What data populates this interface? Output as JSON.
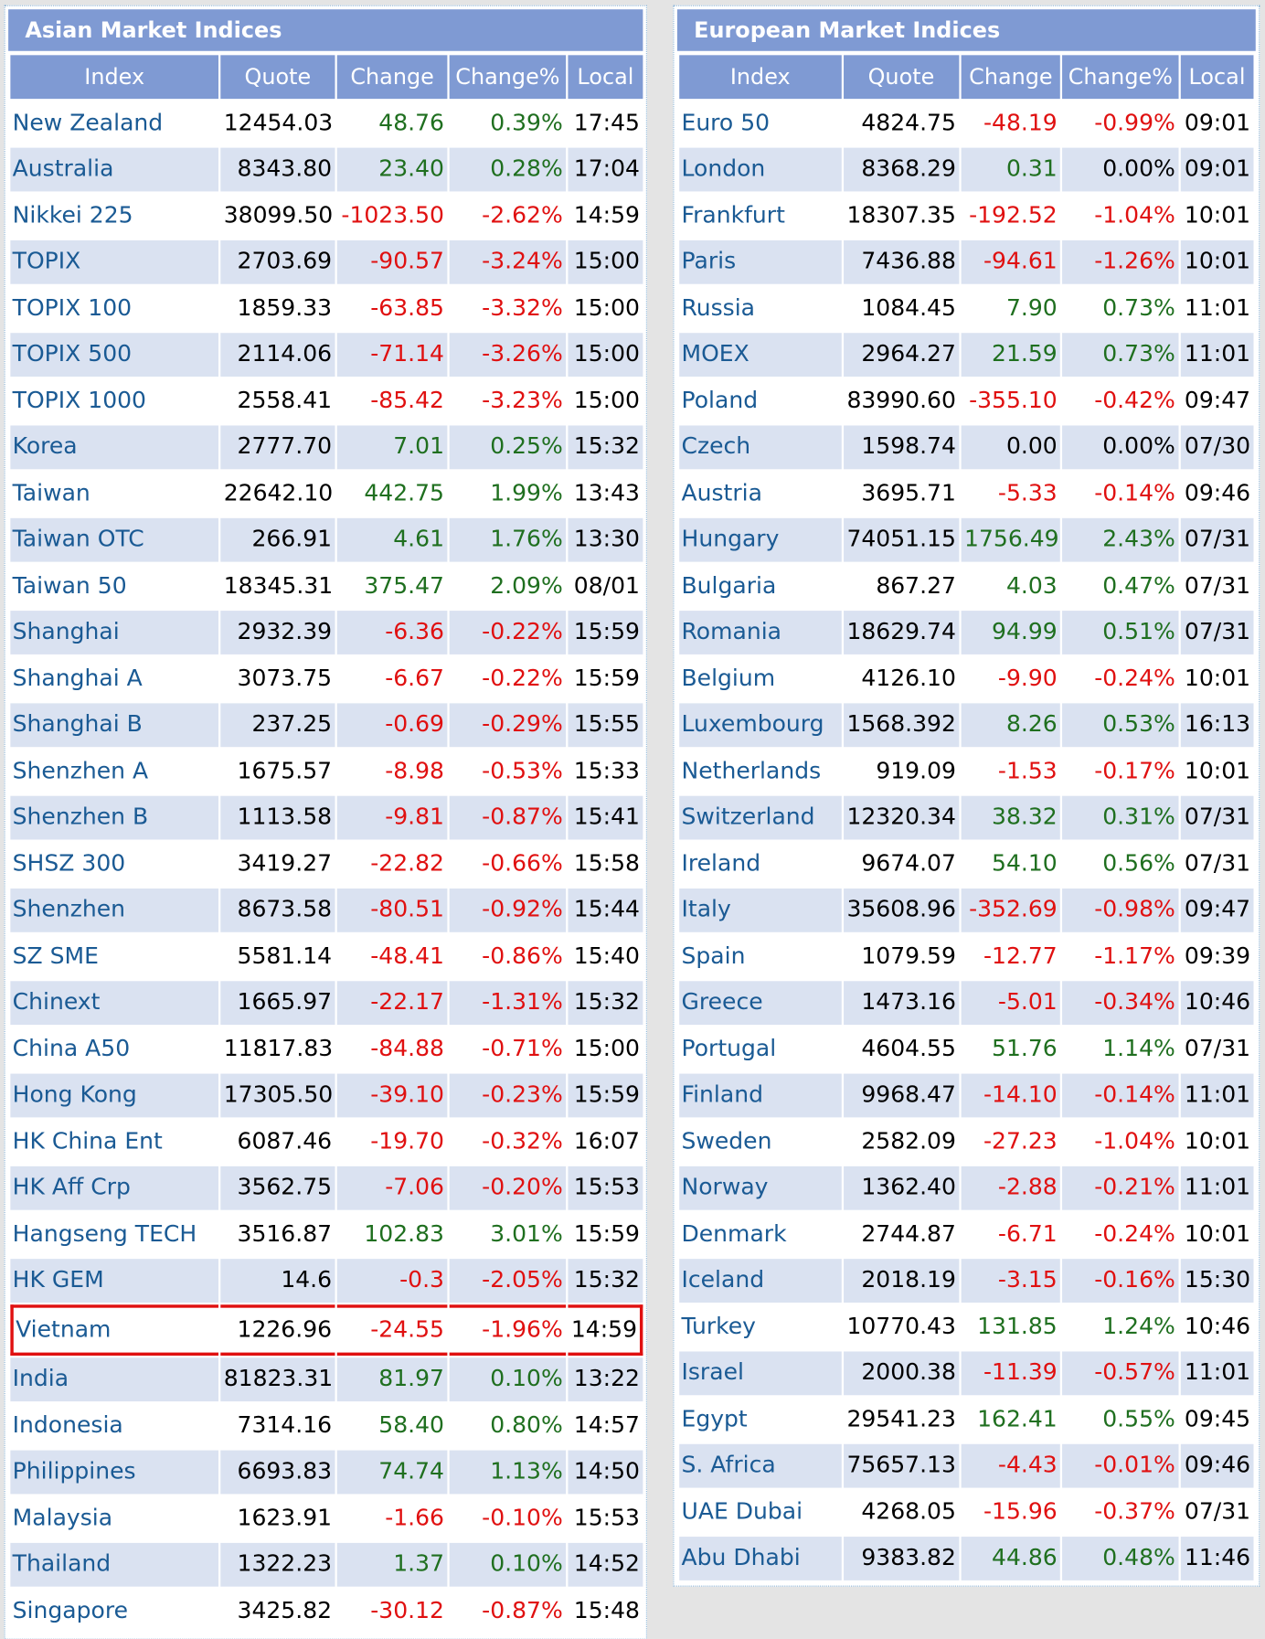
{
  "asian": {
    "title": "Asian Market Indices",
    "headers": [
      "Index",
      "Quote",
      "Change",
      "Change%",
      "Local"
    ],
    "highlighted_row": 26,
    "rows": [
      [
        "New Zealand",
        "12454.03",
        "48.76",
        "0.39%",
        "17:45"
      ],
      [
        "Australia",
        "8343.80",
        "23.40",
        "0.28%",
        "17:04"
      ],
      [
        "Nikkei 225",
        "38099.50",
        "-1023.50",
        "-2.62%",
        "14:59"
      ],
      [
        "TOPIX",
        "2703.69",
        "-90.57",
        "-3.24%",
        "15:00"
      ],
      [
        "TOPIX 100",
        "1859.33",
        "-63.85",
        "-3.32%",
        "15:00"
      ],
      [
        "TOPIX 500",
        "2114.06",
        "-71.14",
        "-3.26%",
        "15:00"
      ],
      [
        "TOPIX 1000",
        "2558.41",
        "-85.42",
        "-3.23%",
        "15:00"
      ],
      [
        "Korea",
        "2777.70",
        "7.01",
        "0.25%",
        "15:32"
      ],
      [
        "Taiwan",
        "22642.10",
        "442.75",
        "1.99%",
        "13:43"
      ],
      [
        "Taiwan OTC",
        "266.91",
        "4.61",
        "1.76%",
        "13:30"
      ],
      [
        "Taiwan 50",
        "18345.31",
        "375.47",
        "2.09%",
        "08/01"
      ],
      [
        "Shanghai",
        "2932.39",
        "-6.36",
        "-0.22%",
        "15:59"
      ],
      [
        "Shanghai A",
        "3073.75",
        "-6.67",
        "-0.22%",
        "15:59"
      ],
      [
        "Shanghai B",
        "237.25",
        "-0.69",
        "-0.29%",
        "15:55"
      ],
      [
        "Shenzhen A",
        "1675.57",
        "-8.98",
        "-0.53%",
        "15:33"
      ],
      [
        "Shenzhen B",
        "1113.58",
        "-9.81",
        "-0.87%",
        "15:41"
      ],
      [
        "SHSZ 300",
        "3419.27",
        "-22.82",
        "-0.66%",
        "15:58"
      ],
      [
        "Shenzhen",
        "8673.58",
        "-80.51",
        "-0.92%",
        "15:44"
      ],
      [
        "SZ SME",
        "5581.14",
        "-48.41",
        "-0.86%",
        "15:40"
      ],
      [
        "Chinext",
        "1665.97",
        "-22.17",
        "-1.31%",
        "15:32"
      ],
      [
        "China A50",
        "11817.83",
        "-84.88",
        "-0.71%",
        "15:00"
      ],
      [
        "Hong Kong",
        "17305.50",
        "-39.10",
        "-0.23%",
        "15:59"
      ],
      [
        "HK China Ent",
        "6087.46",
        "-19.70",
        "-0.32%",
        "16:07"
      ],
      [
        "HK Aff Crp",
        "3562.75",
        "-7.06",
        "-0.20%",
        "15:53"
      ],
      [
        "Hangseng TECH",
        "3516.87",
        "102.83",
        "3.01%",
        "15:59"
      ],
      [
        "HK GEM",
        "14.6",
        "-0.3",
        "-2.05%",
        "15:32"
      ],
      [
        "Vietnam",
        "1226.96",
        "-24.55",
        "-1.96%",
        "14:59"
      ],
      [
        "India",
        "81823.31",
        "81.97",
        "0.10%",
        "13:22"
      ],
      [
        "Indonesia",
        "7314.16",
        "58.40",
        "0.80%",
        "14:57"
      ],
      [
        "Philippines",
        "6693.83",
        "74.74",
        "1.13%",
        "14:50"
      ],
      [
        "Malaysia",
        "1623.91",
        "-1.66",
        "-0.10%",
        "15:53"
      ],
      [
        "Thailand",
        "1322.23",
        "1.37",
        "0.10%",
        "14:52"
      ],
      [
        "Singapore",
        "3425.82",
        "-30.12",
        "-0.87%",
        "15:48"
      ]
    ]
  },
  "european": {
    "title": "European Market Indices",
    "headers": [
      "Index",
      "Quote",
      "Change",
      "Change%",
      "Local"
    ],
    "rows": [
      [
        "Euro 50",
        "4824.75",
        "-48.19",
        "-0.99%",
        "09:01"
      ],
      [
        "London",
        "8368.29",
        "0.31",
        "0.00%",
        "09:01"
      ],
      [
        "Frankfurt",
        "18307.35",
        "-192.52",
        "-1.04%",
        "10:01"
      ],
      [
        "Paris",
        "7436.88",
        "-94.61",
        "-1.26%",
        "10:01"
      ],
      [
        "Russia",
        "1084.45",
        "7.90",
        "0.73%",
        "11:01"
      ],
      [
        "MOEX",
        "2964.27",
        "21.59",
        "0.73%",
        "11:01"
      ],
      [
        "Poland",
        "83990.60",
        "-355.10",
        "-0.42%",
        "09:47"
      ],
      [
        "Czech",
        "1598.74",
        "0.00",
        "0.00%",
        "07/30"
      ],
      [
        "Austria",
        "3695.71",
        "-5.33",
        "-0.14%",
        "09:46"
      ],
      [
        "Hungary",
        "74051.15",
        "1756.49",
        "2.43%",
        "07/31"
      ],
      [
        "Bulgaria",
        "867.27",
        "4.03",
        "0.47%",
        "07/31"
      ],
      [
        "Romania",
        "18629.74",
        "94.99",
        "0.51%",
        "07/31"
      ],
      [
        "Belgium",
        "4126.10",
        "-9.90",
        "-0.24%",
        "10:01"
      ],
      [
        "Luxembourg",
        "1568.392",
        "8.26",
        "0.53%",
        "16:13"
      ],
      [
        "Netherlands",
        "919.09",
        "-1.53",
        "-0.17%",
        "10:01"
      ],
      [
        "Switzerland",
        "12320.34",
        "38.32",
        "0.31%",
        "07/31"
      ],
      [
        "Ireland",
        "9674.07",
        "54.10",
        "0.56%",
        "07/31"
      ],
      [
        "Italy",
        "35608.96",
        "-352.69",
        "-0.98%",
        "09:47"
      ],
      [
        "Spain",
        "1079.59",
        "-12.77",
        "-1.17%",
        "09:39"
      ],
      [
        "Greece",
        "1473.16",
        "-5.01",
        "-0.34%",
        "10:46"
      ],
      [
        "Portugal",
        "4604.55",
        "51.76",
        "1.14%",
        "07/31"
      ],
      [
        "Finland",
        "9968.47",
        "-14.10",
        "-0.14%",
        "11:01"
      ],
      [
        "Sweden",
        "2582.09",
        "-27.23",
        "-1.04%",
        "10:01"
      ],
      [
        "Norway",
        "1362.40",
        "-2.88",
        "-0.21%",
        "11:01"
      ],
      [
        "Denmark",
        "2744.87",
        "-6.71",
        "-0.24%",
        "10:01"
      ],
      [
        "Iceland",
        "2018.19",
        "-3.15",
        "-0.16%",
        "15:30"
      ],
      [
        "Turkey",
        "10770.43",
        "131.85",
        "1.24%",
        "10:46"
      ],
      [
        "Israel",
        "2000.38",
        "-11.39",
        "-0.57%",
        "11:01"
      ],
      [
        "Egypt",
        "29541.23",
        "162.41",
        "0.55%",
        "09:45"
      ],
      [
        "S. Africa",
        "75657.13",
        "-4.43",
        "-0.01%",
        "09:46"
      ],
      [
        "UAE Dubai",
        "4268.05",
        "-15.96",
        "-0.37%",
        "07/31"
      ],
      [
        "Abu Dhabi",
        "9383.82",
        "44.86",
        "0.48%",
        "11:46"
      ]
    ]
  }
}
